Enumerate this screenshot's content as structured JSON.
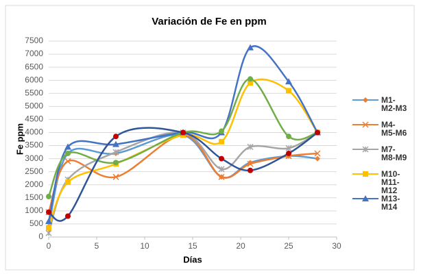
{
  "chart_data": {
    "type": "scatter",
    "title": "Variación de Fe en ppm",
    "x_label": "Días",
    "y_label": "Fe ppm",
    "x": [
      0,
      2,
      7,
      14,
      18,
      21,
      25,
      28
    ],
    "xlim": [
      0,
      30
    ],
    "xticks": [
      0,
      5,
      10,
      15,
      20,
      25,
      30
    ],
    "ylim": [
      0,
      7500
    ],
    "yticks": [
      0,
      500,
      1000,
      1500,
      2000,
      2500,
      3000,
      3500,
      4000,
      4500,
      5000,
      5500,
      6000,
      6500,
      7000,
      7500
    ],
    "grid": true,
    "smooth": true,
    "legend": "right",
    "series": [
      {
        "name": "M1- M2-M3",
        "color": "#5b9bd5",
        "marker": "diamond",
        "marker_color": "#ed7d31",
        "values": [
          400,
          3200,
          3200,
          3900,
          2300,
          2850,
          3100,
          3000
        ]
      },
      {
        "name": "M4- M5-M6",
        "color": "#ed7d31",
        "marker": "x",
        "marker_color": "#ed7d31",
        "values": [
          950,
          2900,
          2300,
          3900,
          2300,
          2800,
          3100,
          3200
        ]
      },
      {
        "name": "M7- M8-M9",
        "color": "#a5a5a5",
        "marker": "star",
        "marker_color": "#a5a5a5",
        "values": [
          150,
          2200,
          3250,
          4000,
          2600,
          3450,
          3400,
          4000
        ]
      },
      {
        "name": "M10- M11- M12",
        "color": "#ffc000",
        "marker": "square",
        "marker_color": "#ffc000",
        "values": [
          350,
          2100,
          2800,
          3900,
          3650,
          5900,
          5600,
          4000
        ]
      },
      {
        "name": "M13- M14",
        "color": "#4472c4",
        "marker": "triangle",
        "marker_color": "#4472c4",
        "values": [
          600,
          3450,
          3550,
          4000,
          4000,
          7250,
          5950,
          4000
        ]
      },
      {
        "color": "#70ad47",
        "marker": "circle",
        "marker_color": "#70ad47",
        "values": [
          1550,
          3200,
          2850,
          4000,
          4050,
          6050,
          3850,
          4000
        ]
      },
      {
        "color": "#2e5597",
        "marker": "circle",
        "marker_color": "#c00000",
        "values": [
          950,
          800,
          3850,
          4000,
          3000,
          2550,
          3200,
          4000
        ]
      }
    ]
  }
}
